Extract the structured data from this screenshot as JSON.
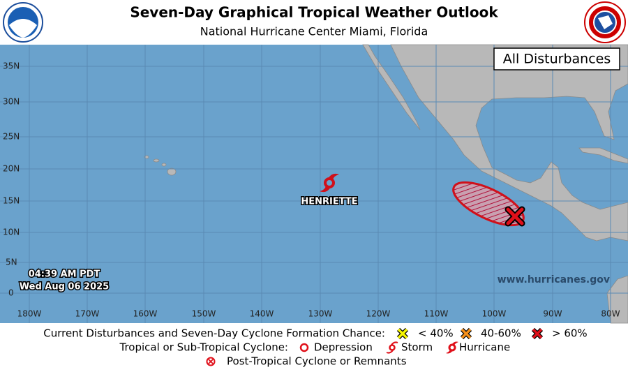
{
  "header": {
    "title": "Seven-Day Graphical Tropical Weather Outlook",
    "subtitle": "National Hurricane Center  Miami, Florida"
  },
  "map": {
    "panel_label": "All Disturbances",
    "lat_labels": [
      "35N",
      "30N",
      "25N",
      "20N",
      "15N",
      "10N",
      "5N",
      "0"
    ],
    "lon_labels": [
      "180W",
      "170W",
      "160W",
      "150W",
      "140W",
      "130W",
      "120W",
      "110W",
      "100W",
      "90W",
      "80W"
    ],
    "storm_name": "HENRIETTE",
    "time": "04:39 AM PDT",
    "date": "Wed Aug 06 2025",
    "website": "www.hurricanes.gov"
  },
  "legend": {
    "disturbance_title": "Current Disturbances and Seven-Day Cyclone Formation Chance:",
    "chances": [
      "< 40%",
      "40-60%",
      "> 60%"
    ],
    "cyclone_title": "Tropical or Sub-Tropical Cyclone:",
    "cyclones": [
      "Depression",
      "Storm",
      "Hurricane"
    ],
    "post_tropical": "Post-Tropical Cyclone or Remnants"
  }
}
